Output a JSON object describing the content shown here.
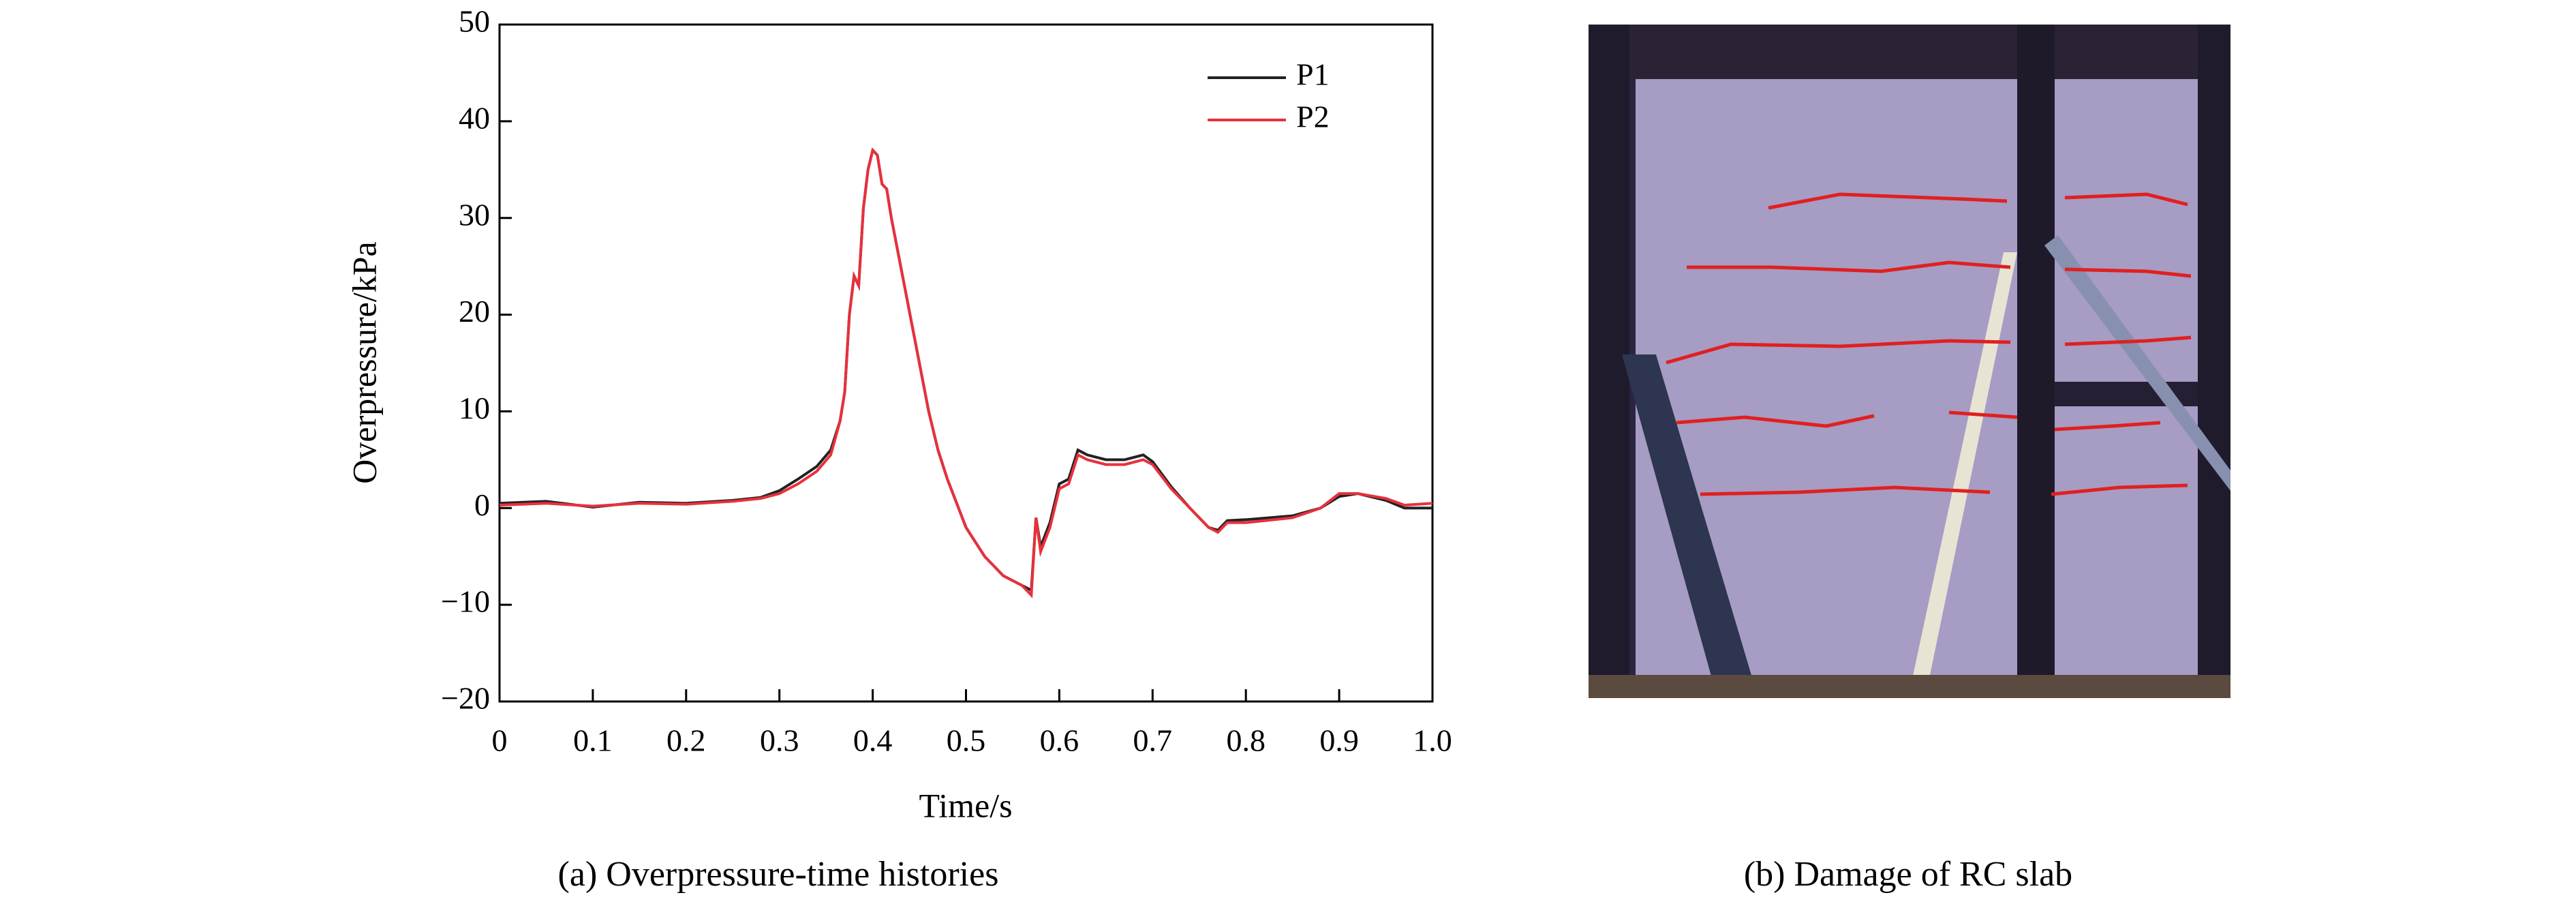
{
  "chart_data": {
    "type": "line",
    "xlabel": "Time/s",
    "ylabel": "Overpressure/kPa",
    "caption": "(a) Overpressure-time histories",
    "xlim": [
      0,
      1.0
    ],
    "ylim": [
      -20,
      50
    ],
    "xticks": [
      0,
      0.1,
      0.2,
      0.3,
      0.4,
      0.5,
      0.6,
      0.7,
      0.8,
      0.9,
      {
        "value": 1.0,
        "label": "1.0"
      }
    ],
    "yticks": [
      {
        "value": -20,
        "label": "−20"
      },
      {
        "value": -10,
        "label": "−10"
      },
      0,
      10,
      20,
      30,
      40,
      50
    ],
    "legend": "upper right",
    "x": [
      0,
      0.05,
      0.1,
      0.15,
      0.2,
      0.25,
      0.28,
      0.3,
      0.32,
      0.34,
      0.355,
      0.365,
      0.37,
      0.375,
      0.38,
      0.385,
      0.39,
      0.395,
      0.4,
      0.405,
      0.41,
      0.415,
      0.42,
      0.43,
      0.44,
      0.45,
      0.46,
      0.47,
      0.48,
      0.49,
      0.5,
      0.52,
      0.54,
      0.56,
      0.57,
      0.575,
      0.58,
      0.59,
      0.6,
      0.61,
      0.62,
      0.63,
      0.65,
      0.67,
      0.69,
      0.7,
      0.72,
      0.74,
      0.76,
      0.77,
      0.78,
      0.8,
      0.85,
      0.88,
      0.9,
      0.92,
      0.95,
      0.97,
      1.0
    ],
    "series": [
      {
        "name": "P1",
        "color": "#222222",
        "values": [
          0.5,
          0.7,
          0.1,
          0.6,
          0.5,
          0.8,
          1.1,
          1.8,
          3,
          4.3,
          6,
          9,
          12,
          20,
          24,
          23,
          31,
          35,
          37,
          36.5,
          33.5,
          33,
          30,
          25,
          20,
          15,
          10,
          6,
          3,
          0.5,
          -2,
          -5,
          -7,
          -8,
          -8.5,
          -1,
          -4,
          -1.5,
          2.5,
          3,
          6,
          5.5,
          5,
          5,
          5.5,
          4.8,
          2.2,
          0,
          -2,
          -2.3,
          -1.3,
          -1.2,
          -0.8,
          0,
          1.2,
          1.5,
          0.8,
          0,
          0
        ]
      },
      {
        "name": "P2",
        "color": "#e8303c",
        "values": [
          0.3,
          0.5,
          0.2,
          0.5,
          0.4,
          0.7,
          1.0,
          1.5,
          2.5,
          3.8,
          5.5,
          9,
          12,
          20,
          24,
          23,
          31,
          35,
          37,
          36.5,
          33.5,
          33,
          30,
          25,
          20,
          15,
          10,
          6,
          3,
          0.5,
          -2,
          -5,
          -7,
          -8,
          -9,
          -1,
          -4.5,
          -2,
          2,
          2.5,
          5.5,
          5,
          4.5,
          4.5,
          5,
          4.5,
          2,
          0,
          -2,
          -2.5,
          -1.5,
          -1.5,
          -1,
          0,
          1.5,
          1.5,
          1,
          0.3,
          0.5
        ]
      }
    ]
  },
  "figure_b": {
    "caption": "(b) Damage of RC slab"
  }
}
